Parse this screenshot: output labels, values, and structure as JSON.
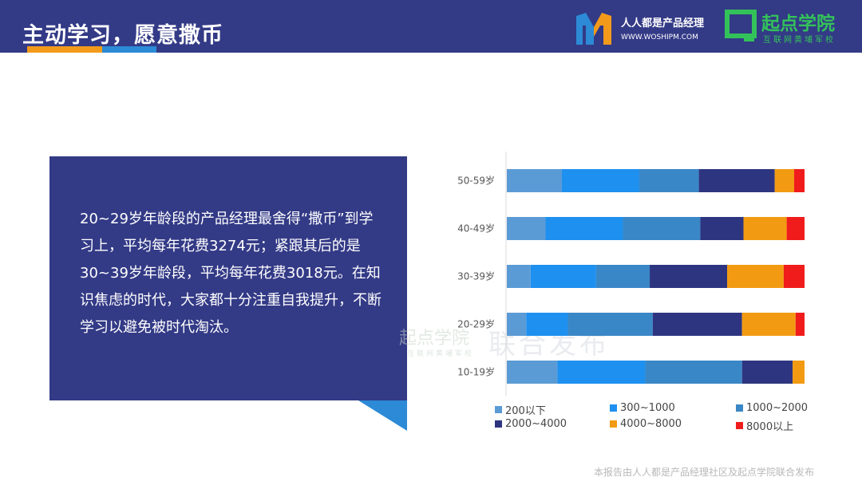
{
  "header": {
    "title": "主动学习，愿意撒币",
    "logo1_name": "人人都是产品经理",
    "logo1_url": "WWW.WOSHIPM.COM",
    "logo2_name": "起点学院",
    "logo2_sub": "互联网黄埔军校"
  },
  "text_box": {
    "body": "20~29岁年龄段的产品经理最舍得“撒币”到学习上，平均每年花费3274元；紧跟其后的是30~39岁年龄段，平均每年花费3018元。在知识焦虑的时代，大家都十分注重自我提升，不断学习以避免被时代淘汰。"
  },
  "watermark": {
    "text": "联合发布",
    "logo": "起点学院",
    "logo_sub": "互联网黄埔军校"
  },
  "footer": {
    "text": "本报告由人人都是产品经理社区及起点学院联合发布"
  },
  "colors": {
    "header_bg": "#333a86",
    "text_box_bg": "#333a86",
    "accent_orange": "#f39a1b",
    "accent_blue": "#2c8ad6",
    "brand_green": "#33c25a"
  },
  "chart_data": {
    "type": "bar",
    "orientation": "horizontal",
    "stacked": "percent",
    "categories": [
      "50-59岁",
      "40-49岁",
      "30-39岁",
      "20-29岁",
      "10-19岁"
    ],
    "series": [
      {
        "name": "200以下",
        "color": "#5b9bd5",
        "values": [
          18.5,
          13,
          8,
          6.5,
          17
        ]
      },
      {
        "name": "300~1000",
        "color": "#1e90f0",
        "values": [
          26,
          26,
          22,
          14,
          29.5
        ]
      },
      {
        "name": "1000~2000",
        "color": "#3a87c7",
        "values": [
          20,
          26,
          18,
          28.5,
          32.5
        ]
      },
      {
        "name": "2000~4000",
        "color": "#2e3580",
        "values": [
          25.5,
          14.5,
          26,
          30,
          17
        ]
      },
      {
        "name": "4000~8000",
        "color": "#f29b12",
        "values": [
          6.5,
          14.5,
          19,
          18,
          4
        ]
      },
      {
        "name": "8000以上",
        "color": "#f01c1c",
        "values": [
          3.5,
          6,
          7,
          3,
          0
        ]
      }
    ],
    "xlim": [
      0,
      100
    ],
    "grid": false,
    "legend_position": "bottom"
  }
}
